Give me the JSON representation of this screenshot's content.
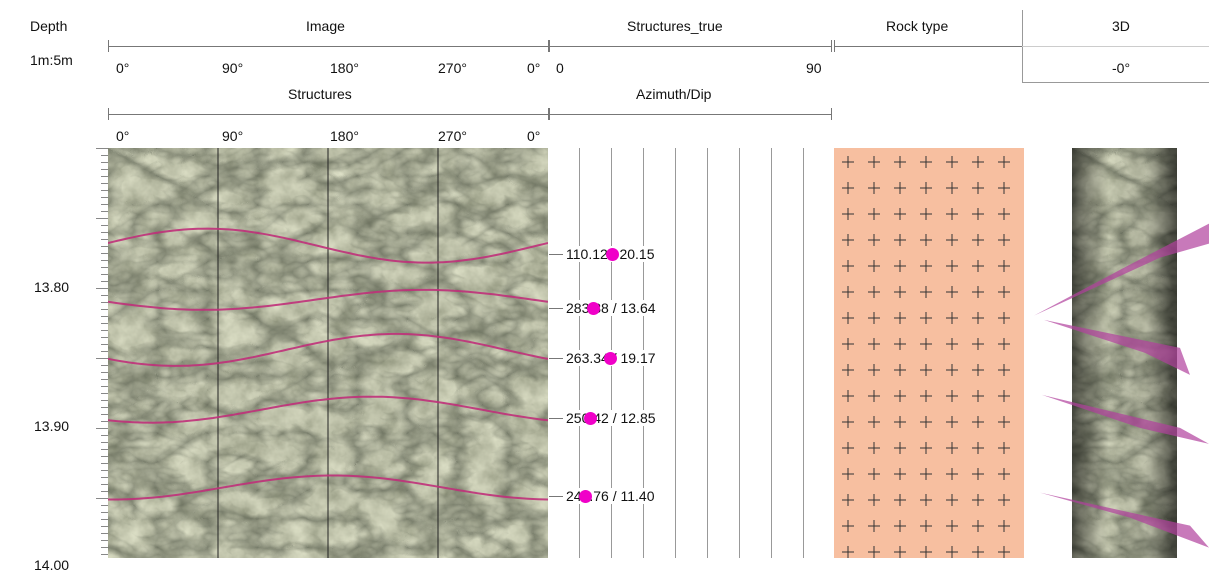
{
  "headers": {
    "depth": "Depth",
    "scale": "1m:5m",
    "image": "Image",
    "structures": "Structures",
    "structures_true": "Structures_true",
    "azimuth_dip": "Azimuth/Dip",
    "rock_type": "Rock type",
    "three_d": "3D",
    "three_d_value": "-0°"
  },
  "image_ticks": [
    "0°",
    "90°",
    "180°",
    "270°",
    "0°"
  ],
  "structures_ticks": [
    "0°",
    "90°",
    "180°",
    "270°",
    "0°"
  ],
  "structures_true_ticks": [
    "0",
    "90"
  ],
  "depth_labels": [
    "13.80",
    "13.90",
    "14.00"
  ],
  "structures": [
    {
      "depth": 13.776,
      "label": "110.12 / 20.15"
    },
    {
      "depth": 13.815,
      "label": "283.88 / 13.64"
    },
    {
      "depth": 13.851,
      "label": "263.34 / 19.17"
    },
    {
      "depth": 13.894,
      "label": "250.42 / 12.85"
    },
    {
      "depth": 13.95,
      "label": "249.76 / 11.40"
    }
  ],
  "colors": {
    "structure_trace": "#c0307a",
    "tadpole_dot": "#f000c8",
    "rock_fill": "#f7bfa0",
    "plane_fill": "#b0409c"
  }
}
